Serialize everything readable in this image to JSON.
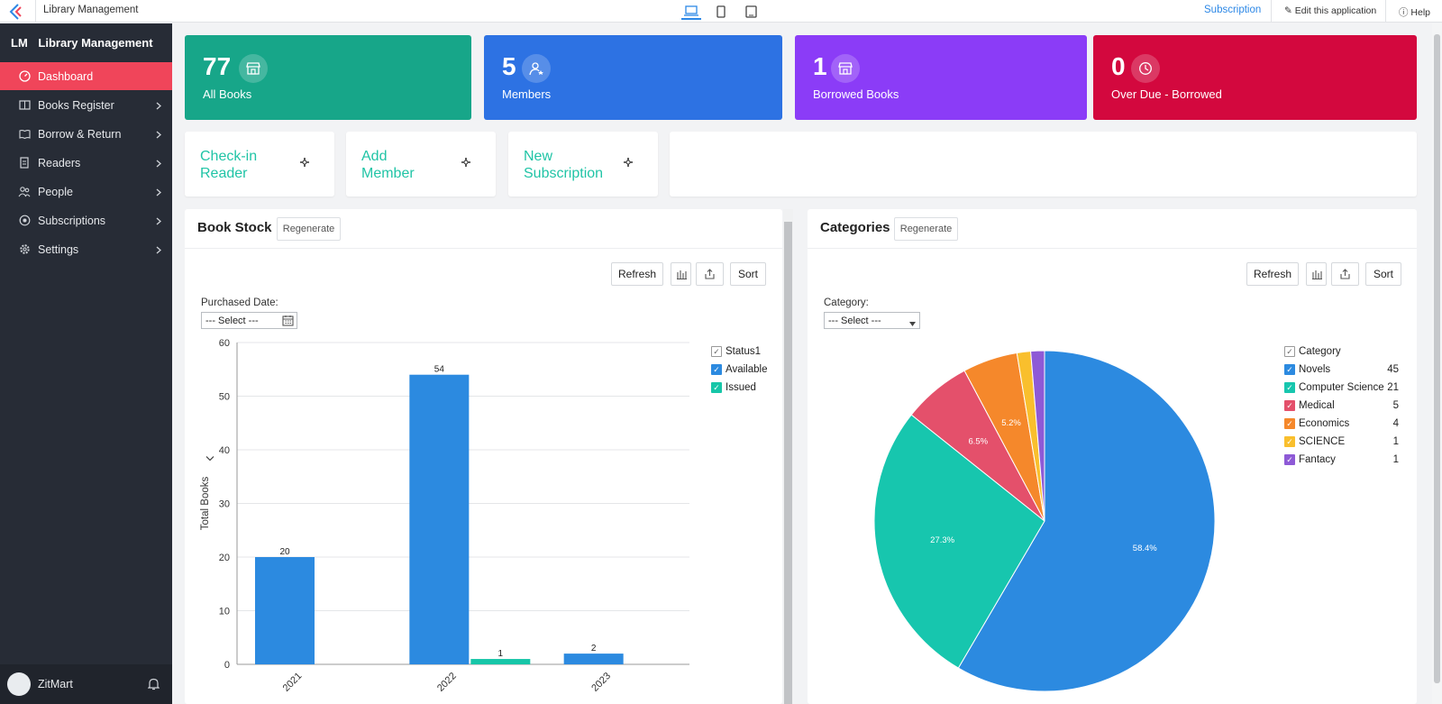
{
  "topbar": {
    "app_name": "Library Management",
    "subscription_link": "Subscription",
    "edit_app": "Edit this application",
    "help": "Help",
    "devices": [
      "laptop-icon",
      "phone-icon",
      "tablet-icon"
    ]
  },
  "sidebar": {
    "brand_short": "LM",
    "brand_name": "Library Management",
    "items": [
      {
        "label": "Dashboard",
        "icon": "dashboard-icon",
        "active": true
      },
      {
        "label": "Books Register",
        "icon": "book-icon"
      },
      {
        "label": "Borrow & Return",
        "icon": "open-book-icon"
      },
      {
        "label": "Readers",
        "icon": "document-icon"
      },
      {
        "label": "People",
        "icon": "people-icon"
      },
      {
        "label": "Subscriptions",
        "icon": "subscription-icon"
      },
      {
        "label": "Settings",
        "icon": "gear-icon"
      }
    ],
    "user_name": "ZitMart"
  },
  "stats": [
    {
      "value": "77",
      "label": "All Books",
      "color": "#17a689",
      "icon": "store-icon"
    },
    {
      "value": "5",
      "label": "Members",
      "color": "#2d72e3",
      "icon": "member-icon"
    },
    {
      "value": "1",
      "label": "Borrowed Books",
      "color": "#8b3cf7",
      "icon": "store-icon"
    },
    {
      "value": "0",
      "label": "Over Due - Borrowed",
      "color": "#d3083e",
      "icon": "clock-icon"
    }
  ],
  "actions": [
    {
      "line1": "Check-in",
      "line2": "Reader"
    },
    {
      "line1": "Add",
      "line2": "Member"
    },
    {
      "line1": "New",
      "line2": "Subscription"
    }
  ],
  "book_stock": {
    "title": "Book Stock",
    "regenerate": "Regenerate",
    "refresh": "Refresh",
    "sort": "Sort",
    "filter_label": "Purchased Date:",
    "filter_value": "--- Select ---",
    "legend_title": "Status1"
  },
  "categories": {
    "title": "Categories",
    "regenerate": "Regenerate",
    "refresh": "Refresh",
    "sort": "Sort",
    "filter_label": "Category:",
    "filter_value": "--- Select ---",
    "legend_title": "Category"
  },
  "chart_data": [
    {
      "type": "bar",
      "categories": [
        "2021",
        "2022",
        "2023"
      ],
      "series": [
        {
          "name": "Available",
          "color": "#2c8ae0",
          "values": [
            20,
            54,
            2
          ]
        },
        {
          "name": "Issued",
          "color": "#17c6a8",
          "values": [
            null,
            1,
            null
          ]
        }
      ],
      "ylabel": "Total Books",
      "ylim": [
        0,
        60
      ],
      "yticks": [
        0,
        10,
        20,
        30,
        40,
        50,
        60
      ],
      "grid": true,
      "legend": "right"
    },
    {
      "type": "pie",
      "slices": [
        {
          "name": "Novels",
          "value": 45,
          "label": "58.4%",
          "color": "#2c8ae0"
        },
        {
          "name": "Computer Science",
          "value": 21,
          "label": "27.3%",
          "color": "#17c6ae"
        },
        {
          "name": "Medical",
          "value": 5,
          "label": "6.5%",
          "color": "#e4506b"
        },
        {
          "name": "Economics",
          "value": 4,
          "label": "5.2%",
          "color": "#f5882b"
        },
        {
          "name": "SCIENCE",
          "value": 1,
          "label": "",
          "color": "#f9bf2d"
        },
        {
          "name": "Fantacy",
          "value": 1,
          "label": "",
          "color": "#8e5ad6"
        }
      ],
      "legend": "right"
    }
  ]
}
